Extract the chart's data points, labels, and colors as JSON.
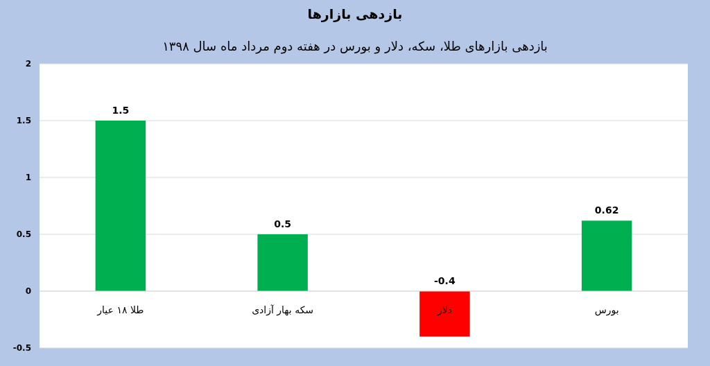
{
  "chart_data": {
    "type": "bar",
    "title": "بازدهی بازارها",
    "subtitle": "بازدهی بازارهای طلا، سکه، دلار و بورس در هفته دوم مرداد ماه سال ۱۳۹۸",
    "categories": [
      "طلا ۱۸ عیار",
      "سکه بهار آزادی",
      "دلار",
      "بورس"
    ],
    "values": [
      1.5,
      0.5,
      -0.4,
      0.62
    ],
    "colors": [
      "#00b050",
      "#00b050",
      "#ff0000",
      "#00b050"
    ],
    "ylim": [
      -0.5,
      2
    ],
    "yticks": [
      -0.5,
      0,
      0.5,
      1,
      1.5,
      2
    ],
    "grid": "y",
    "data_labels": true
  }
}
